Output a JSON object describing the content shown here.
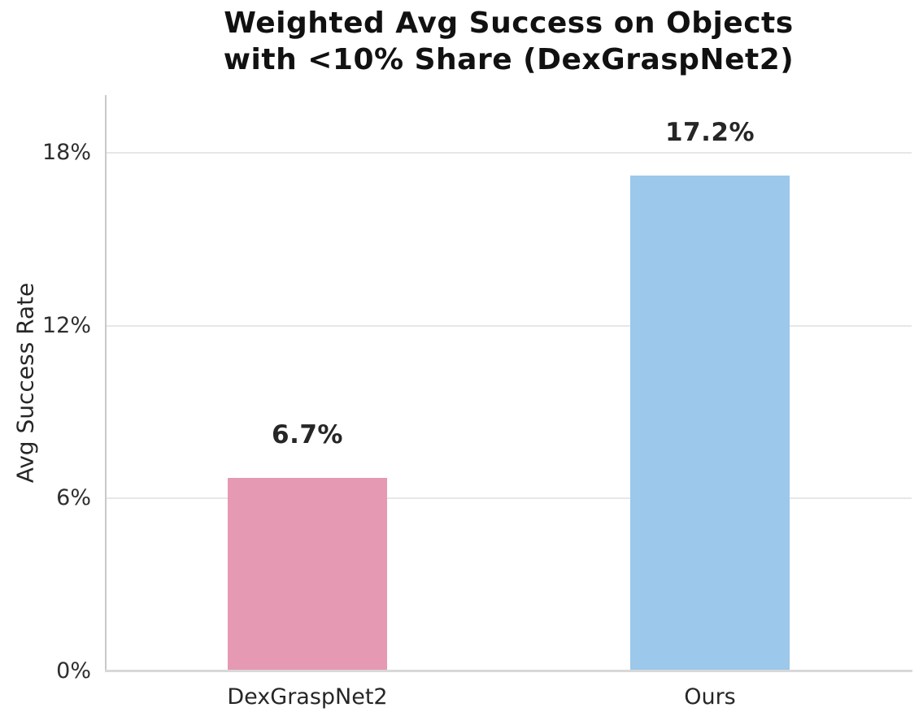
{
  "chart_data": {
    "type": "bar",
    "title": "Weighted Avg Success on Objects\nwith <10% Share (DexGraspNet2)",
    "xlabel": "",
    "ylabel": "Avg Success Rate",
    "categories": [
      "DexGraspNet2",
      "Ours"
    ],
    "values": [
      6.7,
      17.2
    ],
    "value_labels": [
      "6.7%",
      "17.2%"
    ],
    "bar_colors": [
      "#E699B2",
      "#9BC8EB"
    ],
    "ylim": [
      0,
      20
    ],
    "yticks": [
      {
        "value": 0,
        "label": "0%"
      },
      {
        "value": 6,
        "label": "6%"
      },
      {
        "value": 12,
        "label": "12%"
      },
      {
        "value": 18,
        "label": "18%"
      }
    ],
    "grid": "horizontal",
    "legend_position": "none"
  },
  "colors": {
    "background": "#FFFFFF",
    "gridline": "#E7E7E7",
    "spine_left": "#C9C9C9",
    "spine_bottom": "#D8D8D8",
    "title_text": "#111111",
    "tick_text": "#2E2E2E",
    "value_label_text": "#262626"
  }
}
